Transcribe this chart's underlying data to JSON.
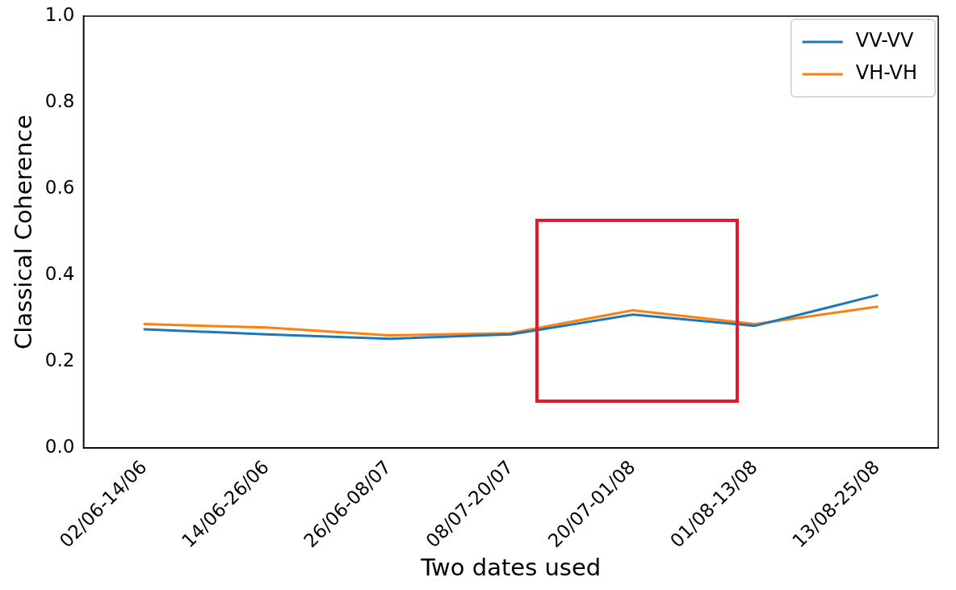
{
  "chart_data": {
    "type": "line",
    "xlabel": "Two dates used",
    "ylabel": "Classical Coherence",
    "categories": [
      "02/06-14/06",
      "14/06-26/06",
      "26/06-08/07",
      "08/07-20/07",
      "20/07-01/08",
      "01/08-13/08",
      "13/08-25/08"
    ],
    "series": [
      {
        "name": "VV-VV",
        "color": "#1f77b4",
        "values": [
          0.275,
          0.263,
          0.253,
          0.263,
          0.309,
          0.283,
          0.354
        ]
      },
      {
        "name": "VH-VH",
        "color": "#ff7f0e",
        "values": [
          0.287,
          0.279,
          0.261,
          0.266,
          0.319,
          0.287,
          0.327
        ]
      }
    ],
    "ylim": [
      0,
      1
    ],
    "yticks": [
      {
        "value": 0,
        "label": "0.0"
      },
      {
        "value": 0.2,
        "label": "0.2"
      },
      {
        "value": 0.4,
        "label": "0.4"
      },
      {
        "value": 0.6,
        "label": "0.6"
      },
      {
        "value": 0.8,
        "label": "0.8"
      },
      {
        "value": 1,
        "label": "1.0"
      }
    ],
    "grid": false,
    "legend": "top right",
    "marker": "none",
    "line_style": "solid"
  }
}
